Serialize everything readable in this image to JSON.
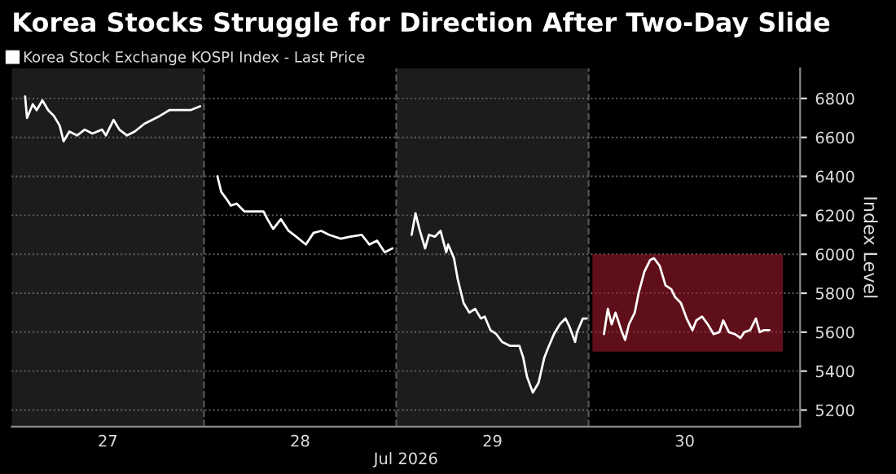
{
  "chart_data": {
    "type": "line",
    "title": "Korea Stocks Struggle for Direction After Two-Day Slide",
    "xlabel": "Jul 2026",
    "ylabel": "Index Level",
    "series": [
      {
        "name": "Korea Stock Exchange KOSPI Index - Last Price",
        "color": "#ffffff",
        "x": [
          26.57,
          26.58,
          26.61,
          26.63,
          26.66,
          26.69,
          26.72,
          26.75,
          26.77,
          26.8,
          26.84,
          26.88,
          26.92,
          26.97,
          26.99,
          27.03,
          27.06,
          27.1,
          27.14,
          27.19,
          27.23,
          27.27,
          27.32,
          27.38,
          27.43,
          27.48,
          27.5,
          27.57,
          27.59,
          27.62,
          27.64,
          27.67,
          27.71,
          27.75,
          27.81,
          27.83,
          27.86,
          27.9,
          27.94,
          27.98,
          28.03,
          28.07,
          28.11,
          28.15,
          28.21,
          28.26,
          28.32,
          28.36,
          28.4,
          28.44,
          28.48,
          28.5,
          28.58,
          28.6,
          28.62,
          28.65,
          28.67,
          28.7,
          28.73,
          28.76,
          28.77,
          28.8,
          28.82,
          28.85,
          28.88,
          28.91,
          28.94,
          28.96,
          28.99,
          29.02,
          29.05,
          29.09,
          29.14,
          29.16,
          29.18,
          29.21,
          29.24,
          29.27,
          29.29,
          29.32,
          29.35,
          29.38,
          29.4,
          29.43,
          29.44,
          29.47,
          29.49,
          29.5,
          29.58,
          29.6,
          29.62,
          29.64,
          29.67,
          29.69,
          29.71,
          29.74,
          29.76,
          29.79,
          29.82,
          29.84,
          29.87,
          29.9,
          29.93,
          29.95,
          29.98,
          30.01,
          30.04,
          30.06,
          30.09,
          30.12,
          30.15,
          30.18,
          30.2,
          30.23,
          30.26,
          30.29,
          30.31,
          30.34,
          30.37,
          30.39,
          30.41,
          30.44
        ],
        "values": [
          6810,
          6700,
          6770,
          6740,
          6790,
          6740,
          6710,
          6660,
          6580,
          6630,
          6610,
          6640,
          6620,
          6640,
          6610,
          6690,
          6640,
          6610,
          6630,
          6670,
          6690,
          6710,
          6740,
          6740,
          6740,
          6760,
          null,
          6400,
          6320,
          6280,
          6250,
          6260,
          6220,
          6220,
          6220,
          6180,
          6130,
          6180,
          6120,
          6090,
          6050,
          6110,
          6120,
          6100,
          6080,
          6090,
          6100,
          6050,
          6070,
          6010,
          6030,
          null,
          6100,
          6210,
          6130,
          6030,
          6100,
          6090,
          6120,
          6010,
          6050,
          5980,
          5870,
          5750,
          5700,
          5720,
          5670,
          5680,
          5610,
          5590,
          5550,
          5530,
          5530,
          5470,
          5370,
          5290,
          5340,
          5470,
          5520,
          5590,
          5640,
          5670,
          5630,
          5550,
          5600,
          5670,
          5670,
          null,
          5590,
          5720,
          5640,
          5700,
          5610,
          5560,
          5640,
          5700,
          5800,
          5910,
          5970,
          5980,
          5940,
          5840,
          5820,
          5780,
          5750,
          5670,
          5610,
          5660,
          5680,
          5640,
          5590,
          5600,
          5660,
          5600,
          5590,
          5570,
          5600,
          5610,
          5670,
          5600,
          5610,
          5610
        ]
      }
    ],
    "xlim": [
      26.5,
      30.6
    ],
    "ylim": [
      5115,
      6955
    ],
    "xticks": [
      27,
      28,
      29,
      30
    ],
    "yticks": [
      5200,
      5400,
      5600,
      5800,
      6000,
      6200,
      6400,
      6600,
      6800
    ],
    "bands": [
      {
        "axis": "x",
        "from": 26.5,
        "to": 27.5,
        "color": "#1c1c1c"
      },
      {
        "axis": "x",
        "from": 28.5,
        "to": 29.5,
        "color": "#1c1c1c"
      },
      {
        "axis": "y",
        "from": 5500,
        "to": 6000,
        "color": "#9e192b"
      }
    ],
    "ref_lines": [
      {
        "axis": "x",
        "value": 27.5,
        "color": "#555555",
        "line_style": "dashed"
      },
      {
        "axis": "x",
        "value": 28.5,
        "color": "#555555",
        "line_style": "dashed"
      },
      {
        "axis": "x",
        "value": 29.5,
        "color": "#555555",
        "line_style": "dashed"
      }
    ],
    "grid": "y",
    "legend": "top left",
    "marker": "none",
    "line_style": "solid"
  }
}
